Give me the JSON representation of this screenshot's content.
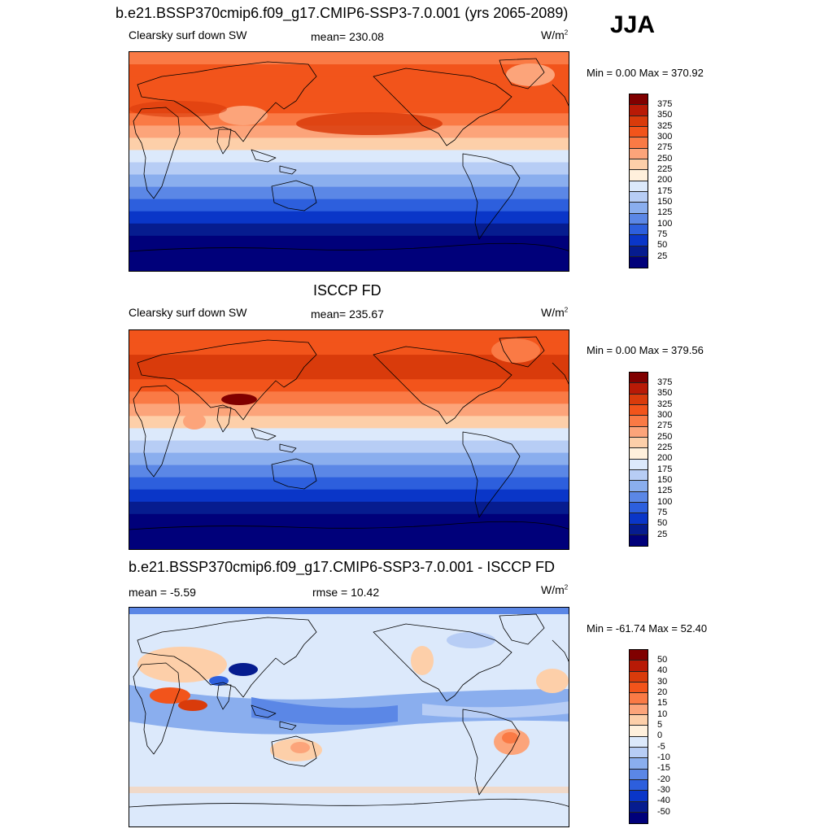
{
  "season": "JJA",
  "panels": [
    {
      "title": "b.e21.BSSP370cmip6.f09_g17.CMIP6-SSP3-7.0.001 (yrs 2065-2089)",
      "left_label": "Clearsky surf down SW",
      "center_label": "mean= 230.08",
      "units": "W/m",
      "units_sup": "2",
      "min_max": "Min =   0.00 Max = 370.92",
      "colorbar_ticks": [
        "375",
        "350",
        "325",
        "300",
        "275",
        "250",
        "225",
        "200",
        "175",
        "150",
        "125",
        "100",
        "75",
        "50",
        "25"
      ]
    },
    {
      "title": "ISCCP FD",
      "left_label": "Clearsky surf down SW",
      "center_label": "mean= 235.67",
      "units": "W/m",
      "units_sup": "2",
      "min_max": "Min =   0.00 Max = 379.56",
      "colorbar_ticks": [
        "375",
        "350",
        "325",
        "300",
        "275",
        "250",
        "225",
        "200",
        "175",
        "150",
        "125",
        "100",
        "75",
        "50",
        "25"
      ]
    },
    {
      "title": "b.e21.BSSP370cmip6.f09_g17.CMIP6-SSP3-7.0.001 - ISCCP FD",
      "left_label": "mean =  -5.59",
      "center_label": "rmse =  10.42",
      "units": "W/m",
      "units_sup": "2",
      "min_max": "Min = -61.74 Max =  52.40",
      "colorbar_ticks": [
        "50",
        "40",
        "30",
        "20",
        "15",
        "10",
        "5",
        "0",
        "-5",
        "-10",
        "-15",
        "-20",
        "-30",
        "-40",
        "-50"
      ]
    }
  ],
  "colorbar_colors": [
    "#800000",
    "#b81a06",
    "#d93b0b",
    "#f2541b",
    "#fa7a45",
    "#fca47a",
    "#fdcfa9",
    "#fff0dc",
    "#dce9fb",
    "#b7cdf5",
    "#8aaeee",
    "#5b87e6",
    "#2d5fdd",
    "#0a36c8",
    "#061c8f",
    "#00007a"
  ],
  "maps": {
    "model_bands": [
      "#fa7a45",
      "#f2541b",
      "#f2541b",
      "#f2541b",
      "#f2541b",
      "#fa7a45",
      "#fca47a",
      "#fdcfa9",
      "#dce9fb",
      "#b7cdf5",
      "#8aaeee",
      "#5b87e6",
      "#2d5fdd",
      "#0a36c8",
      "#061c8f",
      "#00007a",
      "#00007a",
      "#00007a"
    ],
    "obs_bands": [
      "#f2541b",
      "#f2541b",
      "#d93b0b",
      "#d93b0b",
      "#f2541b",
      "#fa7a45",
      "#fca47a",
      "#fdcfa9",
      "#dce9fb",
      "#b7cdf5",
      "#8aaeee",
      "#5b87e6",
      "#2d5fdd",
      "#0a36c8",
      "#061c8f",
      "#00007a",
      "#00007a",
      "#00007a"
    ],
    "diff_base": "#dce9fb"
  }
}
